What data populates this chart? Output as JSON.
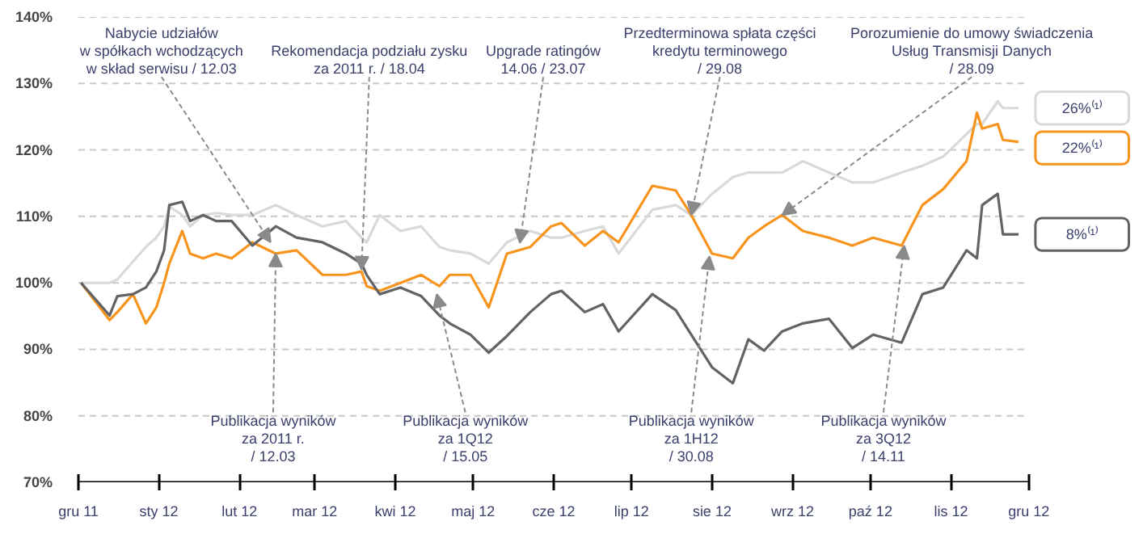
{
  "chart_data": {
    "type": "line",
    "x": [
      "2011-12-02",
      "2011-12-13",
      "2011-12-16",
      "2011-12-22",
      "2011-12-27",
      "2011-12-31",
      "2012-01-03",
      "2012-01-05",
      "2012-01-10",
      "2012-01-13",
      "2012-01-18",
      "2012-01-23",
      "2012-01-29",
      "2012-02-06",
      "2012-02-15",
      "2012-02-23",
      "2012-03-04",
      "2012-03-13",
      "2012-03-19",
      "2012-03-21",
      "2012-03-26",
      "2012-04-03",
      "2012-04-11",
      "2012-04-18",
      "2012-04-22",
      "2012-04-30",
      "2012-05-07",
      "2012-05-14",
      "2012-05-23",
      "2012-05-31",
      "2012-06-04",
      "2012-06-13",
      "2012-06-20",
      "2012-06-26",
      "2012-07-09",
      "2012-07-18",
      "2012-07-24",
      "2012-08-01",
      "2012-08-09",
      "2012-08-15",
      "2012-08-21",
      "2012-08-28",
      "2012-09-05",
      "2012-09-15",
      "2012-09-24",
      "2012-10-02",
      "2012-10-13",
      "2012-10-21",
      "2012-10-29",
      "2012-11-07",
      "2012-11-11",
      "2012-11-13",
      "2012-11-19",
      "2012-11-21",
      "2012-11-27"
    ],
    "series": [
      {
        "color": "#d9d9d9",
        "values": [
          100,
          100,
          100.5,
          103.2,
          105.4,
          106.8,
          108.5,
          111.5,
          110.2,
          108.5,
          110.2,
          110.5,
          110.2,
          110.2,
          111.7,
          110.2,
          108.5,
          109.3,
          106.8,
          106.1,
          110.2,
          107.8,
          108.5,
          105.4,
          104.9,
          104.4,
          102.9,
          106.1,
          107.8,
          106.8,
          106.8,
          107.8,
          108.5,
          104.4,
          111,
          111.7,
          110.2,
          113.4,
          115.9,
          116.6,
          116.6,
          116.6,
          118.3,
          116.6,
          115.1,
          115.1,
          116.6,
          117.6,
          119,
          122.4,
          123.9,
          123.9,
          127.3,
          126.3,
          126.3
        ]
      },
      {
        "color": "#f7941d",
        "values": [
          100,
          94.4,
          95.6,
          98.3,
          93.9,
          96.3,
          100,
          102.9,
          107.8,
          104.4,
          103.7,
          104.4,
          103.7,
          106.1,
          104.4,
          104.9,
          101.2,
          101.2,
          101.7,
          99.5,
          98.8,
          100,
          101.2,
          99.5,
          101.2,
          101.2,
          96.3,
          104.4,
          105.4,
          108.5,
          109,
          105.6,
          107.8,
          106.1,
          114.6,
          113.9,
          110.2,
          104.4,
          103.7,
          106.8,
          108.5,
          110.2,
          107.8,
          106.8,
          105.6,
          106.8,
          105.6,
          111.7,
          114.1,
          118.3,
          125.6,
          123.2,
          123.9,
          121.5,
          121.2
        ]
      },
      {
        "color": "#626366",
        "values": [
          100,
          95.1,
          98,
          98.3,
          99.3,
          101.7,
          104.9,
          111.7,
          112.2,
          109.3,
          110.2,
          109.3,
          109.3,
          105.6,
          108.5,
          106.8,
          106.1,
          104.4,
          102.9,
          101.2,
          98.3,
          99.3,
          98,
          95.1,
          93.9,
          92.2,
          89.5,
          92,
          95.6,
          98.3,
          98.8,
          95.6,
          96.8,
          92.7,
          98.3,
          95.9,
          92.2,
          87.3,
          84.9,
          91.5,
          89.8,
          92.7,
          93.9,
          94.6,
          90.2,
          92.2,
          91,
          98.3,
          99.3,
          104.9,
          103.7,
          111.7,
          113.4,
          107.3,
          107.3
        ]
      }
    ],
    "xlim": [
      "2011-12-01",
      "2012-12-01"
    ],
    "xticks": [
      {
        "value": "2011-12-01",
        "label": "gru 11"
      },
      {
        "value": "2012-01-01",
        "label": "sty 12"
      },
      {
        "value": "2012-02-01",
        "label": "lut 12"
      },
      {
        "value": "2012-03-01",
        "label": "mar 12"
      },
      {
        "value": "2012-04-01",
        "label": "kwi 12"
      },
      {
        "value": "2012-05-01",
        "label": "maj 12"
      },
      {
        "value": "2012-06-01",
        "label": "cze 12"
      },
      {
        "value": "2012-07-01",
        "label": "lip 12"
      },
      {
        "value": "2012-08-01",
        "label": "sie 12"
      },
      {
        "value": "2012-09-01",
        "label": "wrz 12"
      },
      {
        "value": "2012-10-01",
        "label": "paź 12"
      },
      {
        "value": "2012-11-01",
        "label": "lis 12"
      },
      {
        "value": "2012-12-01",
        "label": "gru 12"
      }
    ],
    "ylim": [
      70,
      140
    ],
    "yticks": [
      {
        "value": 70,
        "label": "70%"
      },
      {
        "value": 80,
        "label": "80%"
      },
      {
        "value": 90,
        "label": "90%"
      },
      {
        "value": 100,
        "label": "100%"
      },
      {
        "value": 110,
        "label": "110%"
      },
      {
        "value": 120,
        "label": "120%"
      },
      {
        "value": 130,
        "label": "130%"
      },
      {
        "value": 140,
        "label": "140%"
      }
    ],
    "grid": "y",
    "line_style": "solid",
    "annotations": [
      {
        "text": "Nabycie udziałów\nw spółkach wchodzących\nw skład serwisu / 12.03",
        "x": "2012-02-13",
        "y": 106.1
      },
      {
        "text": "Rekomendacja podziału zysku\nza 2011 r. / 18.04",
        "x": "2012-03-19",
        "y": 102
      },
      {
        "text": "Upgrade ratingów\n14.06 / 23.07",
        "x": "2012-05-19",
        "y": 106
      },
      {
        "text": "Przedterminowa spłata części\nkredytu terminowego\n/ 29.08",
        "x": "2012-07-24",
        "y": 110.2
      },
      {
        "text": "Porozumienie do umowy świadczenia\nUsług Transmisji Danych\n/ 28.09",
        "x": "2012-08-28",
        "y": 110.2
      },
      {
        "text": "Publikacja wyników\nza 2011 r.\n/ 12.03",
        "x": "2012-02-15",
        "y": 104.4
      },
      {
        "text": "Publikacja wyników\nza 1Q12\n/ 15.05",
        "x": "2012-04-17",
        "y": 98.3
      },
      {
        "text": "Publikacja wyników\nza 1H12\n/ 30.08",
        "x": "2012-07-31",
        "y": 104
      },
      {
        "text": "Publikacja wyników\nza 3Q12\n/ 14.11",
        "x": "2012-10-14",
        "y": 105.6
      },
      "26%⁽¹⁾",
      "22%⁽¹⁾",
      "8%⁽¹⁾"
    ]
  }
}
